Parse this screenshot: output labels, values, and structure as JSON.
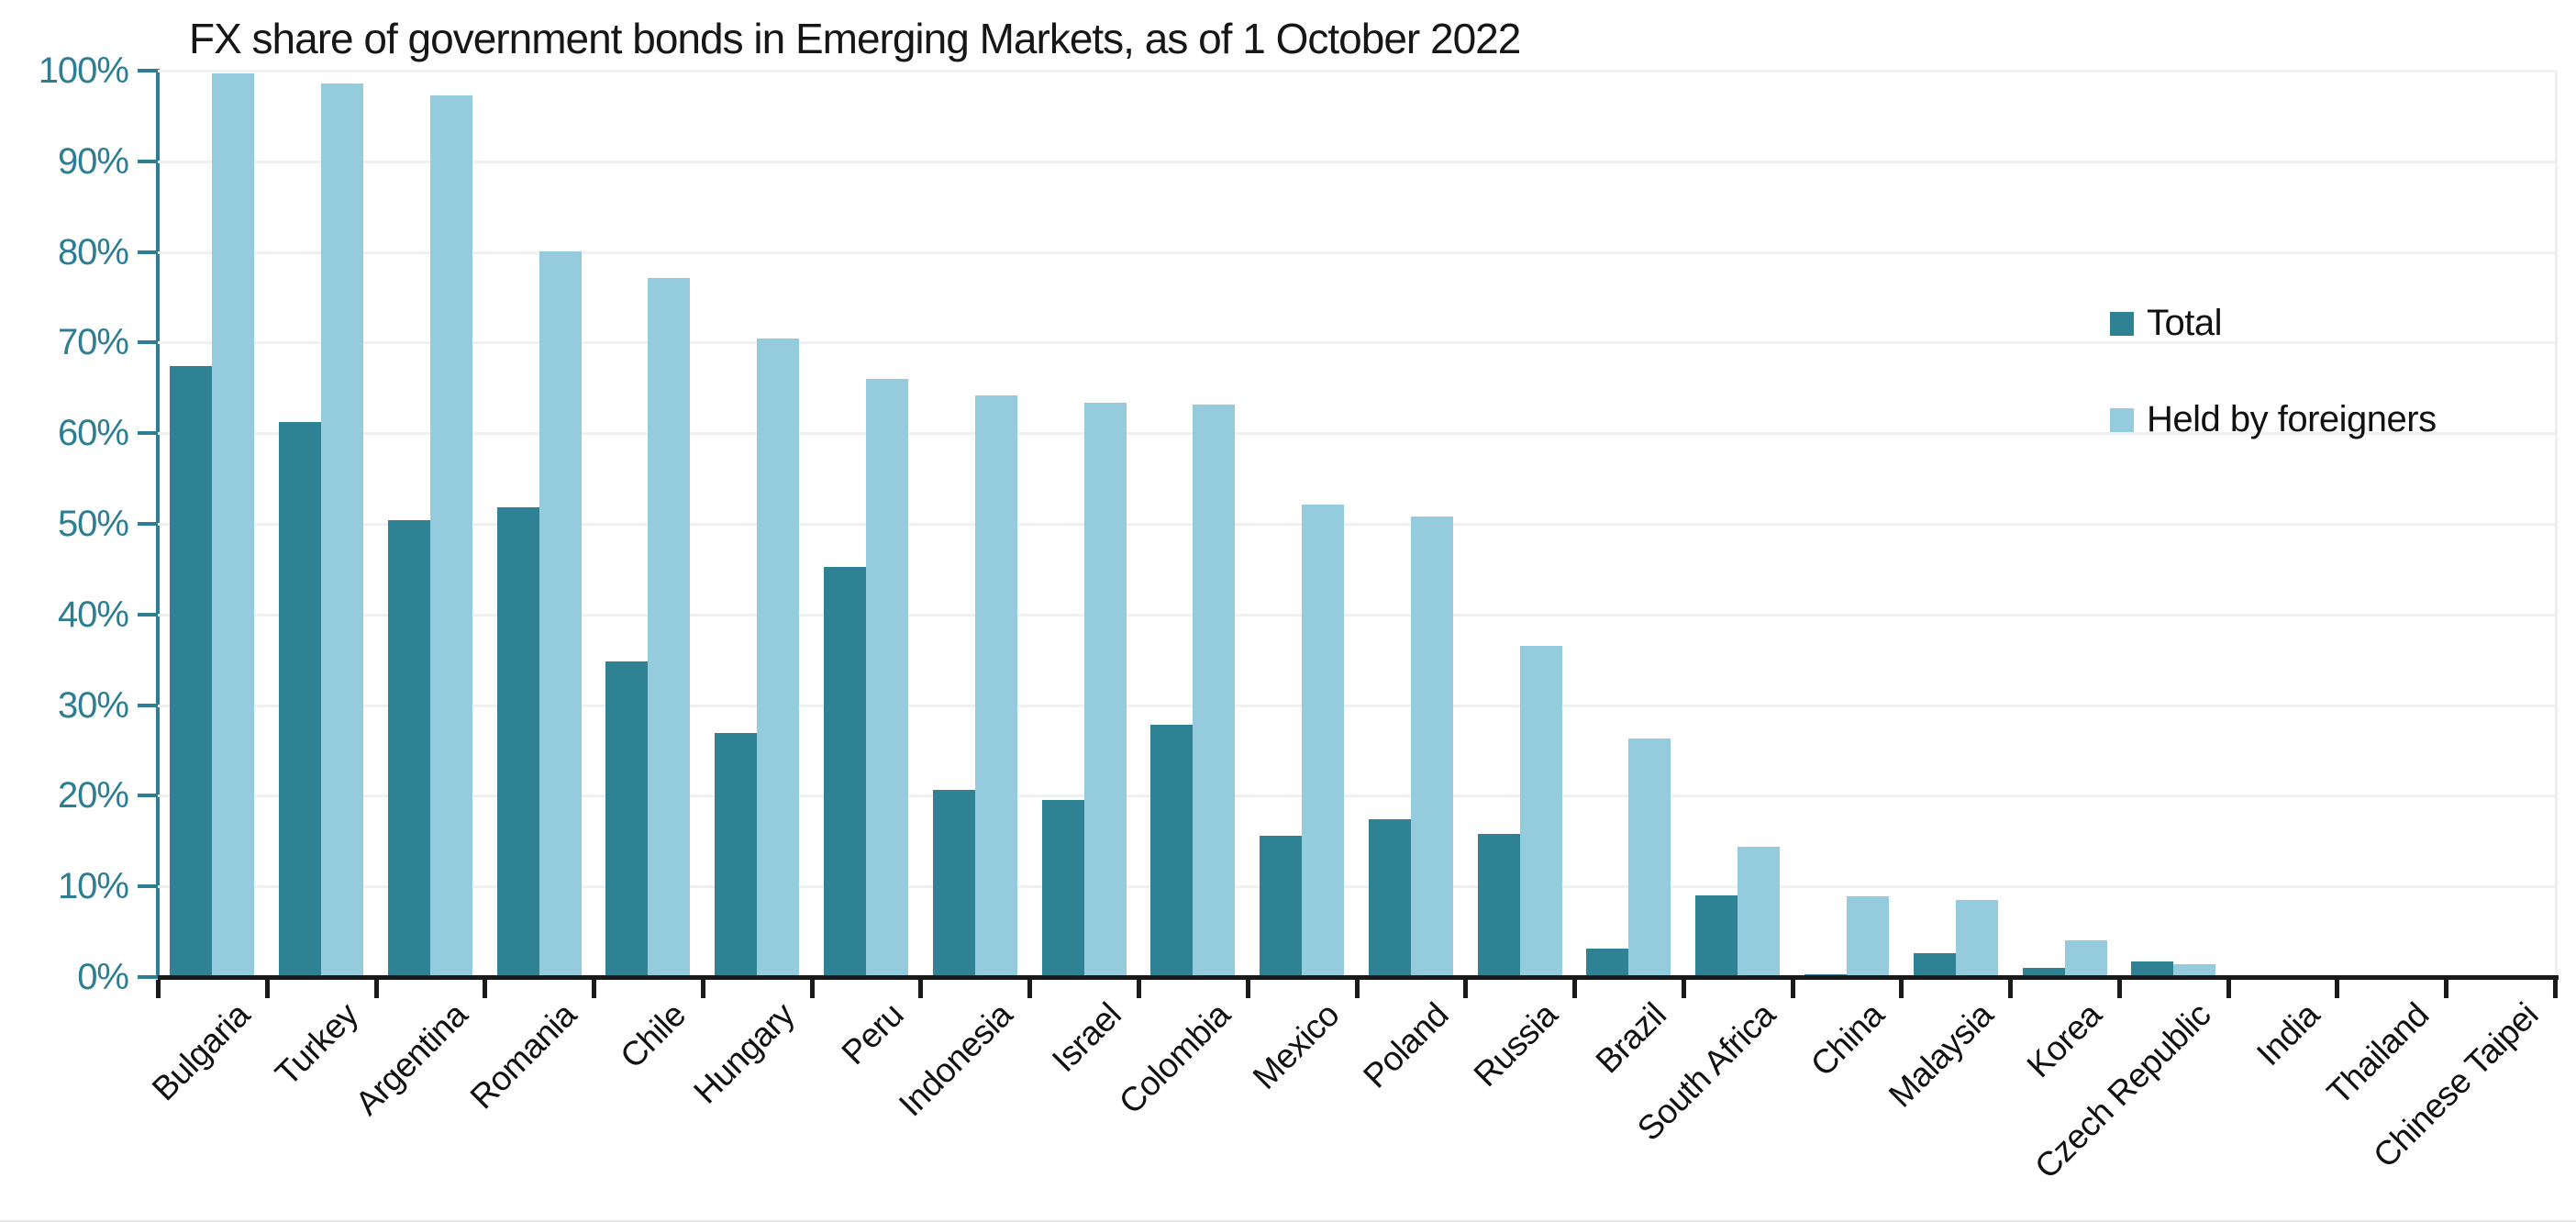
{
  "title": "FX share of government bonds in Emerging Markets, as of 1 October 2022",
  "colors": {
    "total_series": "#2e8294",
    "foreign_series": "#94ccdd",
    "axis": "#2d7e92",
    "gridline": "#f0f0f0",
    "baseline": "#1a1a1a",
    "title_text": "#161616",
    "category_text": "#111111"
  },
  "legend": {
    "items": [
      {
        "label": "Total",
        "series": "total"
      },
      {
        "label": "Held by foreigners",
        "series": "foreign"
      }
    ]
  },
  "y_axis": {
    "tick_labels": [
      "100%",
      "90%",
      "80%",
      "70%",
      "60%",
      "50%",
      "40%",
      "30%",
      "20%",
      "10%",
      "0%"
    ],
    "min": 0,
    "max": 100,
    "step": 10
  },
  "chart_data": {
    "type": "bar",
    "title": "FX share of government bonds in Emerging Markets, as of 1 October 2022",
    "categories": [
      "Bulgaria",
      "Turkey",
      "Argentina",
      "Romania",
      "Chile",
      "Hungary",
      "Peru",
      "Indonesia",
      "Israel",
      "Colombia",
      "Mexico",
      "Poland",
      "Russia",
      "Brazil",
      "South Africa",
      "China",
      "Malaysia",
      "Korea",
      "Czech Republic",
      "India",
      "Thailand",
      "Chinese Taipei"
    ],
    "series": [
      {
        "name": "Total",
        "color": "#2e8294",
        "values": [
          67.4,
          61.2,
          50.4,
          51.8,
          34.8,
          26.9,
          45.2,
          20.6,
          19.5,
          27.8,
          15.6,
          17.4,
          15.8,
          3.1,
          9.0,
          0.3,
          2.6,
          1.0,
          1.7,
          0,
          0,
          0
        ]
      },
      {
        "name": "Held by foreigners",
        "color": "#94ccdd",
        "values": [
          99.7,
          98.6,
          97.3,
          80.1,
          77.1,
          70.4,
          66.0,
          64.2,
          63.4,
          63.2,
          52.1,
          50.8,
          36.5,
          26.3,
          14.4,
          8.9,
          8.5,
          4.0,
          1.4,
          0,
          0,
          0
        ]
      }
    ],
    "xlabel": "",
    "ylabel": "",
    "ylim": [
      0,
      100
    ],
    "grid": true,
    "legend_position": "top-right-inside"
  }
}
